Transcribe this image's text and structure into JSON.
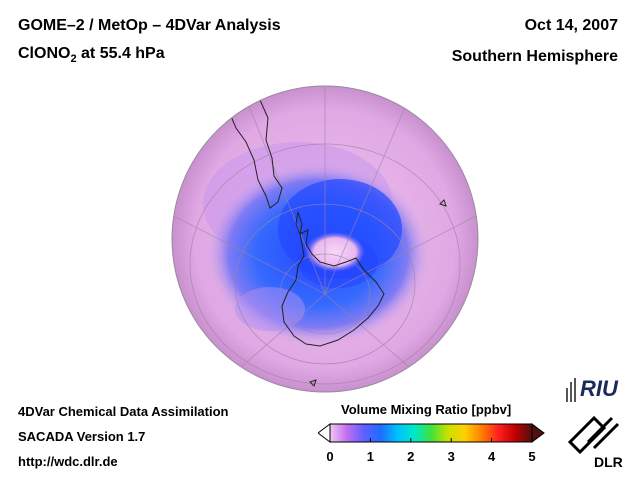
{
  "header": {
    "title_line1": "GOME–2 / MetOp – 4DVar Analysis",
    "species_main": "ClONO",
    "species_sub": "2",
    "species_rest": " at 55.4 hPa",
    "date": "Oct 14, 2007",
    "region": "Southern Hemisphere"
  },
  "footer": {
    "line1": "4DVar Chemical Data Assimilation",
    "line2": "SACADA Version 1.7",
    "line3": "http://wdc.dlr.de"
  },
  "colorbar": {
    "title": "Volume Mixing Ratio [ppbv]",
    "ticks": [
      "0",
      "1",
      "2",
      "3",
      "4",
      "5"
    ],
    "range": [
      0,
      5
    ],
    "colors": [
      "#f0c8f0",
      "#c070f0",
      "#6060ff",
      "#1e6cff",
      "#00c0ff",
      "#00e8c8",
      "#40e040",
      "#c8e000",
      "#ffd000",
      "#ff8000",
      "#ff2020",
      "#c00000",
      "#501010"
    ]
  },
  "logos": {
    "riu_text": "RIU",
    "dlr_text": "DLR"
  },
  "colors": {
    "background": "#ffffff",
    "globe_base": "#e6b0e6",
    "vortex": "#1e5cff",
    "core": "#f0c8f0"
  }
}
